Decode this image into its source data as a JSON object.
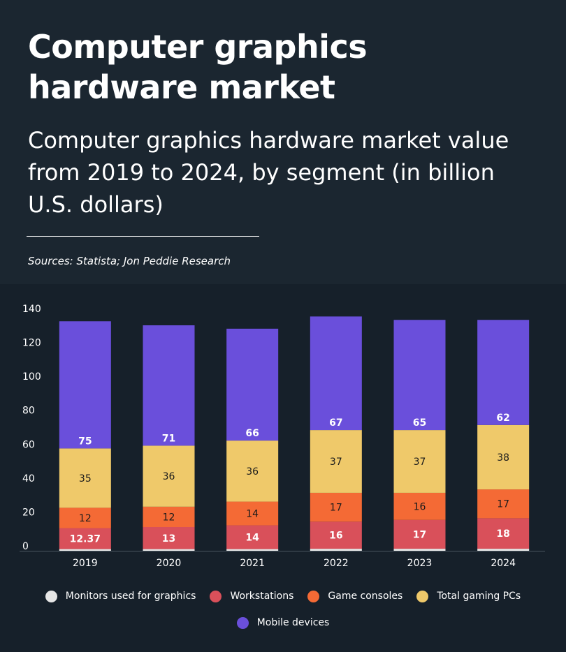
{
  "header": {
    "title": "Computer graphics hardware market",
    "subtitle": "Computer graphics hardware market value from 2019 to 2024, by segment (in billion U.S. dollars)",
    "sources": "Sources: Statista; Jon Peddie Research"
  },
  "chart_data": {
    "type": "bar",
    "stacked": true,
    "categories": [
      "2019",
      "2020",
      "2021",
      "2022",
      "2023",
      "2024"
    ],
    "series": [
      {
        "name": "Monitors used for graphics",
        "color": "#e6e6e6",
        "values": [
          1,
          1,
          1,
          1.2,
          1.2,
          1.2
        ],
        "labels": [
          "",
          "",
          "",
          "",
          "",
          ""
        ],
        "label_color": "#1b1b1b"
      },
      {
        "name": "Workstations",
        "color": "#d9505a",
        "values": [
          12.37,
          13,
          14,
          16,
          17,
          18
        ],
        "labels": [
          "12.37",
          "13",
          "14",
          "16",
          "17",
          "18"
        ],
        "label_color": "#ffffff"
      },
      {
        "name": "Game consoles",
        "color": "#f46a35",
        "values": [
          12,
          12,
          14,
          17,
          16,
          17
        ],
        "labels": [
          "12",
          "12",
          "14",
          "17",
          "16",
          "17"
        ],
        "label_color": "#1b1b1b"
      },
      {
        "name": "Total gaming PCs",
        "color": "#efc96a",
        "values": [
          35,
          36,
          36,
          37,
          37,
          38
        ],
        "labels": [
          "35",
          "36",
          "36",
          "37",
          "37",
          "38"
        ],
        "label_color": "#1b1b1b"
      },
      {
        "name": "Mobile devices",
        "color": "#6a4fdb",
        "values": [
          75,
          71,
          66,
          67,
          65,
          62
        ],
        "labels": [
          "75",
          "71",
          "66",
          "67",
          "65",
          "62"
        ],
        "label_color": "#ffffff"
      }
    ],
    "yticks": [
      "0",
      "20",
      "40",
      "60",
      "80",
      "100",
      "120",
      "140"
    ],
    "ylim": [
      0,
      140
    ],
    "grid": false,
    "legend_position": "bottom"
  },
  "legend": {
    "row1": [
      "Monitors used for graphics",
      "Workstations",
      "Game consoles",
      "Total gaming PCs"
    ],
    "row2": [
      "Mobile devices"
    ]
  }
}
